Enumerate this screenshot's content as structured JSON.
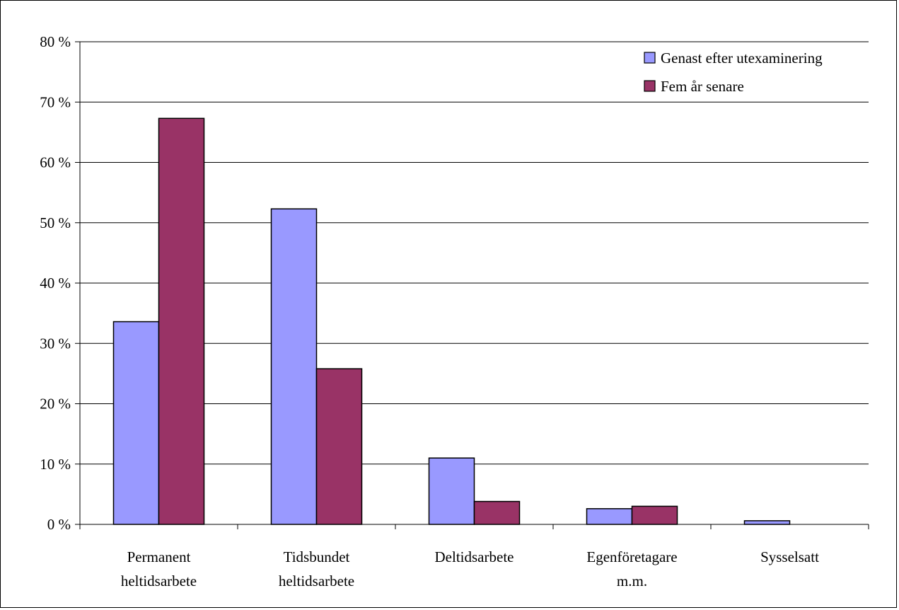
{
  "chart_data": {
    "type": "bar",
    "categories": [
      [
        "Permanent",
        "heltidsarbete"
      ],
      [
        "Tidsbundet",
        "heltidsarbete"
      ],
      [
        "Deltidsarbete"
      ],
      [
        "Egenföretagare",
        "m.m."
      ],
      [
        "Sysselsatt"
      ]
    ],
    "series": [
      {
        "name": "Genast efter utexaminering",
        "color": "#9999ff",
        "values": [
          33.6,
          52.3,
          11.0,
          2.6,
          0.6
        ]
      },
      {
        "name": "Fem år senare",
        "color": "#993366",
        "values": [
          67.3,
          25.8,
          3.8,
          3.0,
          0.0
        ]
      }
    ],
    "ylim": [
      0,
      80
    ],
    "yticks": [
      0,
      10,
      20,
      30,
      40,
      50,
      60,
      70,
      80
    ],
    "ytick_labels": [
      "0 %",
      "10 %",
      "20 %",
      "30 %",
      "40 %",
      "50 %",
      "60 %",
      "70 %",
      "80 %"
    ],
    "grid": true,
    "legend_position": "top-right"
  }
}
